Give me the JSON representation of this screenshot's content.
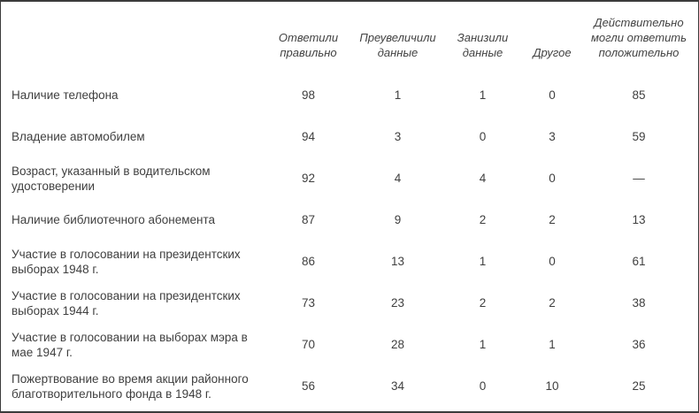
{
  "table": {
    "columns": [
      "Ответили правильно",
      "Преувеличили данные",
      "Занизили данные",
      "Другое",
      "Действительно могли ответить положительно"
    ],
    "rows": [
      {
        "label": "Наличие телефона",
        "values": [
          "98",
          "1",
          "1",
          "0",
          "85"
        ]
      },
      {
        "label": "Владение автомобилем",
        "values": [
          "94",
          "3",
          "0",
          "3",
          "59"
        ]
      },
      {
        "label": "Возраст, указанный в водительском удостоверении",
        "values": [
          "92",
          "4",
          "4",
          "0",
          "—"
        ]
      },
      {
        "label": "Наличие библиотечного абонемента",
        "values": [
          "87",
          "9",
          "2",
          "2",
          "13"
        ]
      },
      {
        "label": "Участие в голосовании на президентских выборах 1948 г.",
        "values": [
          "86",
          "13",
          "1",
          "0",
          "61"
        ]
      },
      {
        "label": "Участие в голосовании на президентских выборах 1944 г.",
        "values": [
          "73",
          "23",
          "2",
          "2",
          "38"
        ]
      },
      {
        "label": "Участие в голосовании на выборах мэра в мае 1947 г.",
        "values": [
          "70",
          "28",
          "1",
          "1",
          "36"
        ]
      },
      {
        "label": "Пожертвование во время акции районного благотворительного фонда в 1948 г.",
        "values": [
          "56",
          "34",
          "0",
          "10",
          "25"
        ]
      }
    ]
  }
}
